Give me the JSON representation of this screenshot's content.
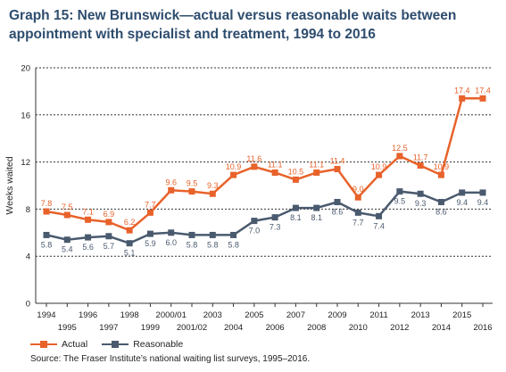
{
  "title": {
    "line1": "Graph 15: New Brunswick—actual versus reasonable waits between",
    "line2": "appointment with specialist and treatment, 1994 to 2016"
  },
  "chart_data": {
    "type": "line",
    "ylabel": "Weeks waited",
    "ylim": [
      0,
      20
    ],
    "yticks": [
      0,
      4,
      8,
      12,
      16,
      20
    ],
    "grid": true,
    "legend_position": "bottom-left",
    "categories": [
      "1994",
      "1995",
      "1996",
      "1997",
      "1998",
      "1999",
      "2000/01",
      "2001/02",
      "2003",
      "2004",
      "2005",
      "2006",
      "2007",
      "2008",
      "2009",
      "2010",
      "2011",
      "2012",
      "2013",
      "2014",
      "2015",
      "2016"
    ],
    "series": [
      {
        "name": "Actual",
        "color": "#e8622a",
        "values": [
          7.8,
          7.5,
          7.1,
          6.9,
          6.2,
          7.7,
          9.6,
          9.5,
          9.3,
          10.9,
          11.6,
          11.1,
          10.5,
          11.1,
          11.4,
          9.0,
          10.9,
          12.5,
          11.7,
          10.9,
          17.4,
          17.4
        ]
      },
      {
        "name": "Reasonable",
        "color": "#4a5a6e",
        "values": [
          5.8,
          5.4,
          5.6,
          5.7,
          5.1,
          5.9,
          6.0,
          5.8,
          5.8,
          5.8,
          7.0,
          7.3,
          8.1,
          8.1,
          8.6,
          7.7,
          7.4,
          9.5,
          9.3,
          8.6,
          9.4,
          9.4
        ]
      }
    ]
  },
  "source": "Source: The Fraser Institute’s national waiting list surveys, 1995–2016."
}
